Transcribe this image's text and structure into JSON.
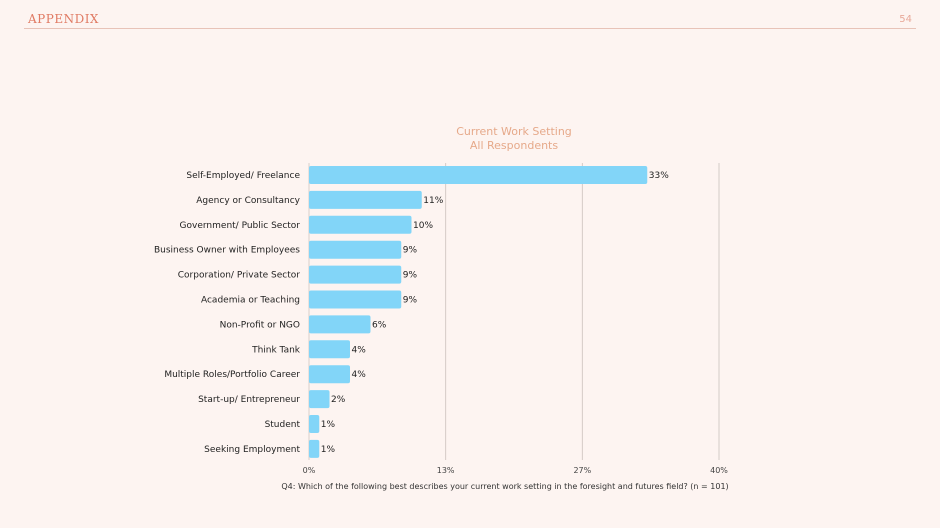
{
  "header": {
    "label": "APPENDIX",
    "page_number": "54"
  },
  "chart_data": {
    "type": "bar",
    "orientation": "horizontal",
    "title": "Current Work Setting",
    "subtitle": "All Respondents",
    "categories": [
      "Self-Employed/ Freelance",
      "Agency or Consultancy",
      "Government/ Public Sector",
      "Business Owner with Employees",
      "Corporation/ Private Sector",
      "Academia or Teaching",
      "Non-Profit or NGO",
      "Think Tank",
      "Multiple Roles/Portfolio Career",
      "Start-up/ Entrepreneur",
      "Student",
      "Seeking Employment"
    ],
    "values": [
      33,
      11,
      10,
      9,
      9,
      9,
      6,
      4,
      4,
      2,
      1,
      1
    ],
    "data_labels": [
      "33%",
      "11%",
      "10%",
      "9%",
      "9%",
      "9%",
      "6%",
      "4%",
      "4%",
      "2%",
      "1%",
      "1%"
    ],
    "value_unit": "%",
    "xlim": [
      0,
      40
    ],
    "x_ticks": [
      0,
      13.33,
      26.67,
      40
    ],
    "x_tick_labels": [
      "0%",
      "13%",
      "27%",
      "40%"
    ],
    "grid": true,
    "bar_color": "#82d5f8",
    "caption": "Q4: Which of the following best describes your current work setting in the foresight and futures field? (n = 101)"
  }
}
